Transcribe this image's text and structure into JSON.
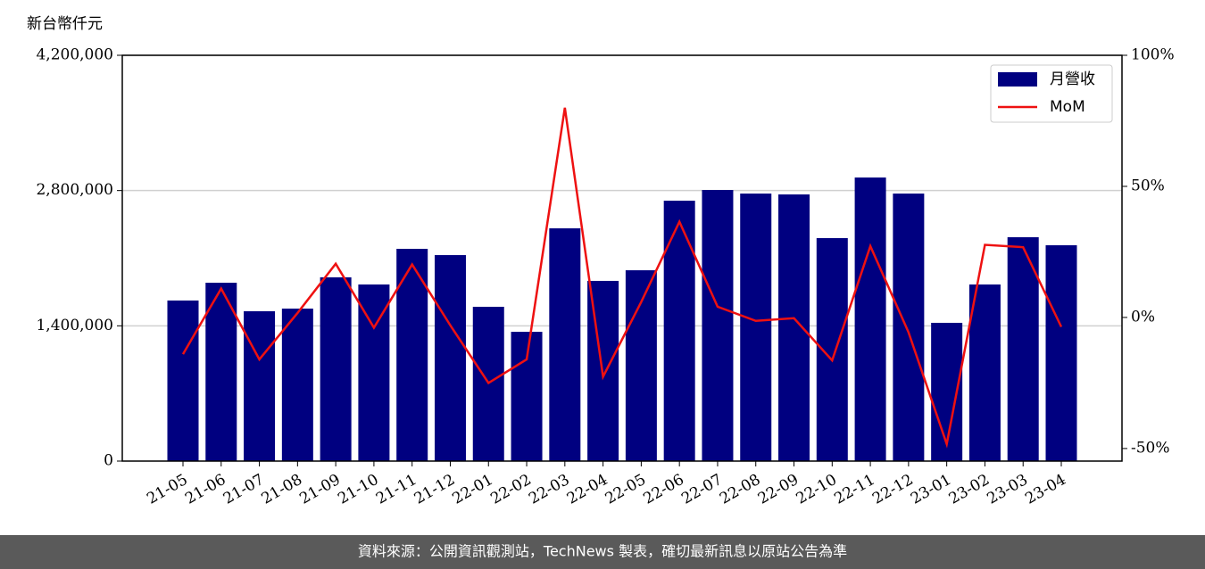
{
  "chart_data": {
    "type": "bar",
    "y_axis_label": "新台幣仟元",
    "categories": [
      "21-05",
      "21-06",
      "21-07",
      "21-08",
      "21-09",
      "21-10",
      "21-11",
      "21-12",
      "22-01",
      "22-02",
      "22-03",
      "22-04",
      "22-05",
      "22-06",
      "22-07",
      "22-08",
      "22-09",
      "22-10",
      "22-11",
      "22-12",
      "23-01",
      "23-02",
      "23-03",
      "23-04"
    ],
    "series": [
      {
        "name": "月營收",
        "type": "bar",
        "color": "#000080",
        "values": [
          1662000,
          1846000,
          1551000,
          1578000,
          1902000,
          1828000,
          2197000,
          2132000,
          1597000,
          1338000,
          2409000,
          1865000,
          1975000,
          2695000,
          2806000,
          2769000,
          2760000,
          2308000,
          2935000,
          2769000,
          1431000,
          1828000,
          2317000,
          2234000
        ]
      },
      {
        "name": "MoM",
        "type": "line",
        "axis": "y2",
        "color": "#ee1111",
        "values": [
          -14,
          11,
          -16,
          1.7,
          20.5,
          -3.9,
          20.2,
          -3,
          -25,
          -16,
          80,
          -22.6,
          5.9,
          36.5,
          4.1,
          -1.3,
          -0.3,
          -16.4,
          27.2,
          -5.7,
          -48.3,
          27.7,
          26.8,
          -3.6
        ]
      }
    ],
    "ylim": [
      0,
      4200000
    ],
    "yticks": [
      {
        "value": 0,
        "label": "0"
      },
      {
        "value": 1400000,
        "label": "1,400,000"
      },
      {
        "value": 2800000,
        "label": "2,800,000"
      },
      {
        "value": 4200000,
        "label": "4,200,000"
      }
    ],
    "y2lim": [
      -54.8,
      100
    ],
    "y2ticks": [
      {
        "value": -50,
        "label": "-50%"
      },
      {
        "value": 0,
        "label": "0%"
      },
      {
        "value": 50,
        "label": "50%"
      },
      {
        "value": 100,
        "label": "100%"
      }
    ],
    "grid": true,
    "legend": "upper right"
  },
  "footer": "資料來源：公開資訊觀測站，TechNews 製表，確切最新訊息以原站公告為準"
}
